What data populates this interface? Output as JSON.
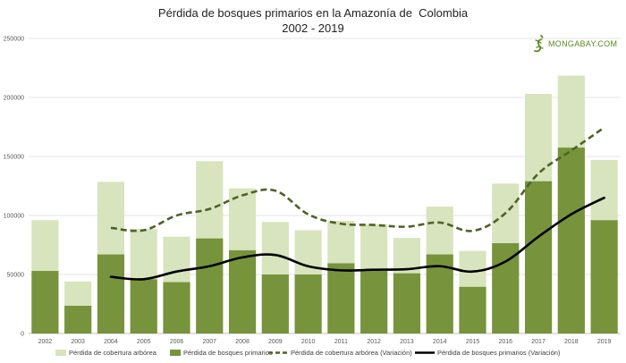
{
  "logo": {
    "text": "MONGABAY.COM",
    "color": "#5a8a1c"
  },
  "chart_data": {
    "type": "bar",
    "title_lines": [
      "Pérdida de bosques primarios en la Amazonía de  Colombia",
      "2002 - 2019"
    ],
    "categories": [
      "2002",
      "2003",
      "2004",
      "2005",
      "2006",
      "2007",
      "2008",
      "2009",
      "2010",
      "2011",
      "2012",
      "2013",
      "2014",
      "2015",
      "2016",
      "2017",
      "2018",
      "2019"
    ],
    "ylim": [
      0,
      250000
    ],
    "yticks": [
      0,
      50000,
      100000,
      150000,
      200000,
      250000
    ],
    "ytick_labels": [
      "0",
      "50000",
      "100000",
      "150000",
      "200000",
      "250000"
    ],
    "grid": true,
    "legend_position": "bottom",
    "series": [
      {
        "name": "Pérdida de cobertura arbórea",
        "kind": "bar",
        "color": "#d7e4bd",
        "values": [
          96000,
          44000,
          128500,
          88500,
          82000,
          146000,
          123000,
          94500,
          87500,
          95500,
          92500,
          81000,
          107500,
          70000,
          127000,
          203000,
          218500,
          147000
        ]
      },
      {
        "name": "Pérdida de bosques primarios",
        "kind": "bar",
        "color": "#77933c",
        "values": [
          53000,
          23500,
          67000,
          46000,
          43500,
          80500,
          70500,
          50000,
          50000,
          59500,
          53000,
          51000,
          67000,
          39500,
          76500,
          129000,
          157500,
          96000
        ]
      },
      {
        "name": "Pérdida de cobertura arbórea (Variación)",
        "kind": "line-dashed",
        "color": "#4f6228",
        "start_index": 2,
        "values": [
          null,
          null,
          89500,
          87500,
          100000,
          105500,
          117000,
          121000,
          101000,
          93000,
          92000,
          90500,
          94000,
          87000,
          102000,
          135500,
          155000,
          174500
        ]
      },
      {
        "name": "Pérdida de bosques primarios (Variación)",
        "kind": "line-solid",
        "color": "#000000",
        "start_index": 2,
        "values": [
          null,
          null,
          48000,
          46000,
          52500,
          57000,
          64500,
          66500,
          57000,
          53500,
          54000,
          54500,
          57000,
          52500,
          61000,
          82000,
          101000,
          115000
        ]
      }
    ]
  }
}
